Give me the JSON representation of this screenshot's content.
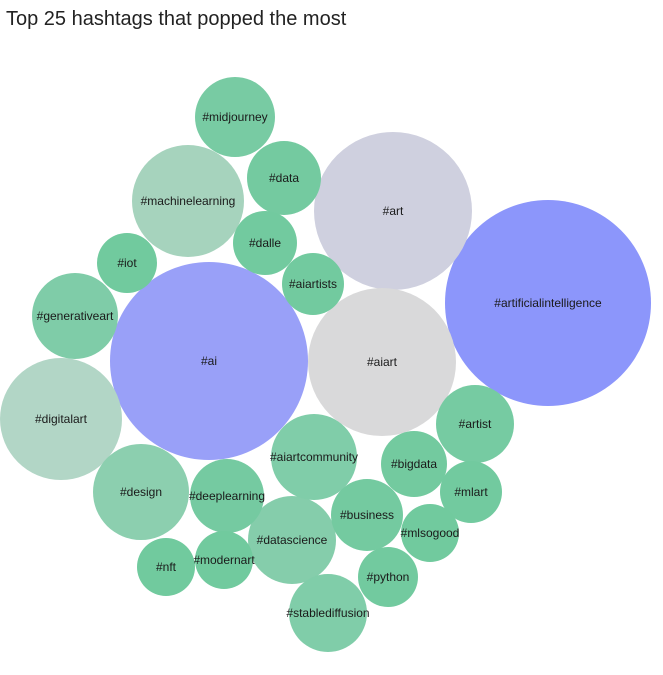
{
  "chart_data": {
    "type": "bubble",
    "title": "Top 25 hashtags that popped the most",
    "bubbles": [
      {
        "label": "#artificialintelligence",
        "color": "#8c96fb"
      },
      {
        "label": "#ai",
        "color": "#99a0f8"
      },
      {
        "label": "#art",
        "color": "#cfd0df"
      },
      {
        "label": "#aiart",
        "color": "#d9d9da"
      },
      {
        "label": "#digitalart",
        "color": "#b2d6c6"
      },
      {
        "label": "#machinelearning",
        "color": "#a6d3bd"
      },
      {
        "label": "#design",
        "color": "#8ccfaf"
      },
      {
        "label": "#datascience",
        "color": "#85cdab"
      },
      {
        "label": "#generativeart",
        "color": "#7fcca8"
      },
      {
        "label": "#aiartcommunity",
        "color": "#80cda9"
      },
      {
        "label": "#stablediffusion",
        "color": "#80cda9"
      },
      {
        "label": "#midjourney",
        "color": "#78cba3"
      },
      {
        "label": "#artist",
        "color": "#76cba2"
      },
      {
        "label": "#deeplearning",
        "color": "#75caa1"
      },
      {
        "label": "#data",
        "color": "#74caa0"
      },
      {
        "label": "#business",
        "color": "#74caa0"
      },
      {
        "label": "#bigdata",
        "color": "#73ca9f"
      },
      {
        "label": "#dalle",
        "color": "#72ca9f"
      },
      {
        "label": "#aiartists",
        "color": "#72ca9f"
      },
      {
        "label": "#mlart",
        "color": "#72ca9f"
      },
      {
        "label": "#python",
        "color": "#72ca9f"
      },
      {
        "label": "#iot",
        "color": "#71ca9e"
      },
      {
        "label": "#modernart",
        "color": "#71ca9e"
      },
      {
        "label": "#mlsogood",
        "color": "#71ca9e"
      },
      {
        "label": "#nft",
        "color": "#71ca9e"
      }
    ]
  }
}
